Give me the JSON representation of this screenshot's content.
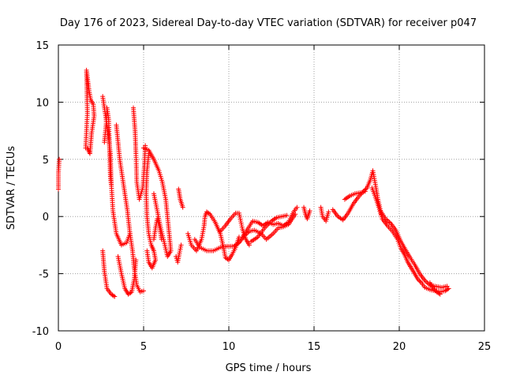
{
  "chart_data": {
    "type": "scatter",
    "title": "Day 176 of 2023, Sidereal Day-to-day VTEC variation (SDTVAR) for receiver p047",
    "xlabel": "GPS time / hours",
    "ylabel": "SDTVAR / TECUs",
    "xlim": [
      0,
      25
    ],
    "ylim": [
      -10,
      15
    ],
    "xticks": [
      0,
      5,
      10,
      15,
      20,
      25
    ],
    "yticks": [
      -10,
      -5,
      0,
      5,
      10,
      15
    ],
    "grid": true,
    "marker": "+",
    "color": "#ff0000",
    "series": [
      {
        "name": "p047",
        "segments": [
          [
            [
              0.0,
              2.4
            ],
            [
              0.0,
              3.8
            ],
            [
              0.05,
              5.0
            ]
          ],
          [
            [
              1.6,
              6.0
            ],
            [
              1.7,
              9.0
            ],
            [
              1.65,
              12.8
            ],
            [
              1.8,
              11.0
            ],
            [
              1.9,
              10.2
            ],
            [
              2.05,
              9.8
            ],
            [
              2.1,
              8.8
            ],
            [
              1.95,
              7.3
            ],
            [
              1.85,
              5.5
            ],
            [
              1.7,
              6.0
            ]
          ],
          [
            [
              2.6,
              10.5
            ],
            [
              2.75,
              9.0
            ],
            [
              2.9,
              7.5
            ],
            [
              3.05,
              5.5
            ],
            [
              3.1,
              3.0
            ],
            [
              3.2,
              0.5
            ],
            [
              3.4,
              -1.5
            ],
            [
              3.7,
              -2.5
            ],
            [
              4.0,
              -2.3
            ],
            [
              4.2,
              -1.5
            ]
          ],
          [
            [
              2.7,
              6.5
            ],
            [
              2.8,
              8.0
            ],
            [
              2.85,
              9.5
            ],
            [
              2.95,
              8.5
            ],
            [
              3.0,
              6.0
            ],
            [
              3.05,
              3.5
            ],
            [
              3.1,
              2.8
            ]
          ],
          [
            [
              2.6,
              -3.0
            ],
            [
              2.7,
              -4.8
            ],
            [
              2.85,
              -6.3
            ],
            [
              3.1,
              -6.8
            ],
            [
              3.3,
              -7.0
            ]
          ],
          [
            [
              3.4,
              8.0
            ],
            [
              3.5,
              6.5
            ],
            [
              3.6,
              5.0
            ],
            [
              3.75,
              3.5
            ],
            [
              3.9,
              2.0
            ],
            [
              4.05,
              0.5
            ],
            [
              4.2,
              -1.5
            ],
            [
              4.35,
              -3.0
            ],
            [
              4.45,
              -4.5
            ],
            [
              4.6,
              -6.0
            ],
            [
              4.8,
              -6.6
            ],
            [
              5.0,
              -6.5
            ]
          ],
          [
            [
              3.5,
              -3.5
            ],
            [
              3.7,
              -5.0
            ],
            [
              3.9,
              -6.3
            ],
            [
              4.1,
              -6.8
            ],
            [
              4.3,
              -6.6
            ],
            [
              4.45,
              -5.5
            ],
            [
              4.55,
              -3.8
            ]
          ],
          [
            [
              4.4,
              9.5
            ],
            [
              4.5,
              7.5
            ],
            [
              4.55,
              5.5
            ],
            [
              4.6,
              3.0
            ],
            [
              4.75,
              1.5
            ],
            [
              4.95,
              2.5
            ],
            [
              5.05,
              4.5
            ],
            [
              5.1,
              6.2
            ]
          ],
          [
            [
              5.0,
              6.0
            ],
            [
              5.3,
              5.8
            ],
            [
              5.6,
              5.0
            ],
            [
              5.9,
              4.0
            ],
            [
              6.1,
              3.0
            ],
            [
              6.3,
              1.5
            ],
            [
              6.4,
              0.0
            ],
            [
              6.5,
              -1.5
            ],
            [
              6.6,
              -3.0
            ],
            [
              6.4,
              -3.5
            ],
            [
              6.2,
              -2.2
            ],
            [
              6.0,
              -1.0
            ],
            [
              5.8,
              0.5
            ],
            [
              5.6,
              2.0
            ]
          ],
          [
            [
              5.3,
              5.5
            ],
            [
              5.2,
              4.0
            ],
            [
              5.15,
              2.0
            ],
            [
              5.2,
              0.0
            ],
            [
              5.3,
              -1.5
            ],
            [
              5.45,
              -2.5
            ],
            [
              5.6,
              -3.0
            ],
            [
              5.7,
              -3.8
            ],
            [
              5.5,
              -4.5
            ],
            [
              5.3,
              -4.0
            ],
            [
              5.2,
              -3.0
            ]
          ],
          [
            [
              5.6,
              -2.0
            ],
            [
              5.7,
              -1.0
            ],
            [
              5.8,
              -0.2
            ],
            [
              5.95,
              -1.0
            ],
            [
              6.05,
              -2.0
            ]
          ],
          [
            [
              7.05,
              2.4
            ],
            [
              7.15,
              1.5
            ],
            [
              7.3,
              0.8
            ]
          ],
          [
            [
              6.9,
              -3.5
            ],
            [
              7.0,
              -4.0
            ],
            [
              7.1,
              -3.2
            ],
            [
              7.2,
              -2.5
            ]
          ],
          [
            [
              7.6,
              -1.5
            ],
            [
              7.8,
              -2.5
            ],
            [
              8.1,
              -3.0
            ],
            [
              8.4,
              -2.0
            ],
            [
              8.55,
              -0.8
            ],
            [
              8.6,
              0.0
            ],
            [
              8.7,
              0.4
            ],
            [
              8.9,
              0.2
            ],
            [
              9.2,
              -0.5
            ],
            [
              9.5,
              -1.5
            ],
            [
              9.7,
              -2.8
            ],
            [
              9.8,
              -3.6
            ],
            [
              10.0,
              -3.8
            ],
            [
              10.2,
              -3.3
            ],
            [
              10.4,
              -2.7
            ],
            [
              10.6,
              -1.8
            ]
          ],
          [
            [
              8.0,
              -2.0
            ],
            [
              8.3,
              -2.7
            ],
            [
              8.7,
              -3.0
            ],
            [
              9.1,
              -3.0
            ],
            [
              9.5,
              -2.7
            ],
            [
              9.9,
              -2.6
            ],
            [
              10.3,
              -2.6
            ],
            [
              10.6,
              -2.3
            ],
            [
              10.9,
              -1.7
            ],
            [
              11.2,
              -1.3
            ],
            [
              11.5,
              -1.2
            ],
            [
              11.9,
              -1.5
            ],
            [
              12.2,
              -2.0
            ],
            [
              12.6,
              -1.5
            ],
            [
              12.9,
              -1.0
            ],
            [
              13.2,
              -0.9
            ],
            [
              13.5,
              -0.7
            ],
            [
              13.9,
              0.2
            ]
          ],
          [
            [
              9.5,
              -1.3
            ],
            [
              9.8,
              -0.8
            ],
            [
              10.1,
              -0.2
            ],
            [
              10.4,
              0.3
            ],
            [
              10.6,
              0.3
            ],
            [
              10.7,
              -0.4
            ],
            [
              10.8,
              -1.1
            ],
            [
              11.0,
              -2.0
            ],
            [
              11.2,
              -2.5
            ]
          ],
          [
            [
              10.8,
              -1.8
            ],
            [
              11.1,
              -1.1
            ],
            [
              11.4,
              -0.4
            ],
            [
              11.7,
              -0.5
            ],
            [
              12.0,
              -0.8
            ],
            [
              12.3,
              -0.5
            ],
            [
              12.6,
              -0.7
            ],
            [
              12.9,
              -0.6
            ],
            [
              13.2,
              -0.8
            ],
            [
              13.5,
              -0.5
            ],
            [
              13.8,
              0.4
            ],
            [
              14.0,
              0.8
            ]
          ],
          [
            [
              11.3,
              -2.2
            ],
            [
              11.7,
              -1.8
            ],
            [
              12.1,
              -1.0
            ],
            [
              12.5,
              -0.4
            ],
            [
              12.8,
              -0.1
            ],
            [
              13.1,
              0.0
            ],
            [
              13.4,
              0.1
            ]
          ],
          [
            [
              14.4,
              0.8
            ],
            [
              14.5,
              0.2
            ],
            [
              14.6,
              -0.2
            ],
            [
              14.75,
              0.5
            ]
          ],
          [
            [
              15.4,
              0.8
            ],
            [
              15.5,
              0.0
            ],
            [
              15.7,
              -0.4
            ],
            [
              15.85,
              0.4
            ]
          ],
          [
            [
              16.1,
              0.6
            ],
            [
              16.4,
              0.0
            ],
            [
              16.7,
              -0.3
            ],
            [
              17.0,
              0.3
            ],
            [
              17.3,
              1.1
            ],
            [
              17.6,
              1.7
            ],
            [
              17.9,
              2.2
            ],
            [
              18.1,
              2.5
            ],
            [
              18.3,
              3.2
            ],
            [
              18.45,
              4.0
            ],
            [
              18.6,
              2.8
            ],
            [
              18.75,
              1.5
            ],
            [
              18.95,
              0.2
            ]
          ],
          [
            [
              16.8,
              1.5
            ],
            [
              17.1,
              1.8
            ],
            [
              17.4,
              2.0
            ],
            [
              17.8,
              2.1
            ],
            [
              18.0,
              2.2
            ]
          ],
          [
            [
              18.4,
              2.5
            ],
            [
              18.6,
              1.7
            ],
            [
              18.8,
              0.8
            ],
            [
              19.0,
              -0.2
            ],
            [
              19.3,
              -0.8
            ],
            [
              19.6,
              -1.3
            ],
            [
              19.9,
              -2.0
            ],
            [
              20.1,
              -2.8
            ],
            [
              20.3,
              -3.3
            ],
            [
              20.5,
              -4.0
            ],
            [
              20.7,
              -4.5
            ],
            [
              20.9,
              -5.0
            ],
            [
              21.1,
              -5.5
            ],
            [
              21.3,
              -5.8
            ],
            [
              21.5,
              -6.2
            ],
            [
              21.8,
              -6.4
            ],
            [
              22.1,
              -6.5
            ],
            [
              22.4,
              -6.6
            ],
            [
              22.7,
              -6.5
            ],
            [
              22.9,
              -6.3
            ]
          ],
          [
            [
              18.9,
              0.5
            ],
            [
              19.2,
              -0.2
            ],
            [
              19.5,
              -0.6
            ],
            [
              19.8,
              -1.2
            ],
            [
              20.1,
              -2.2
            ],
            [
              20.4,
              -3.0
            ],
            [
              20.6,
              -3.5
            ],
            [
              20.9,
              -4.2
            ],
            [
              21.2,
              -5.0
            ],
            [
              21.5,
              -5.6
            ],
            [
              21.8,
              -6.0
            ],
            [
              22.1,
              -6.1
            ],
            [
              22.5,
              -6.2
            ],
            [
              22.8,
              -6.1
            ]
          ],
          [
            [
              21.8,
              -5.8
            ],
            [
              22.0,
              -6.3
            ],
            [
              22.2,
              -6.6
            ],
            [
              22.4,
              -6.8
            ]
          ]
        ]
      }
    ]
  }
}
